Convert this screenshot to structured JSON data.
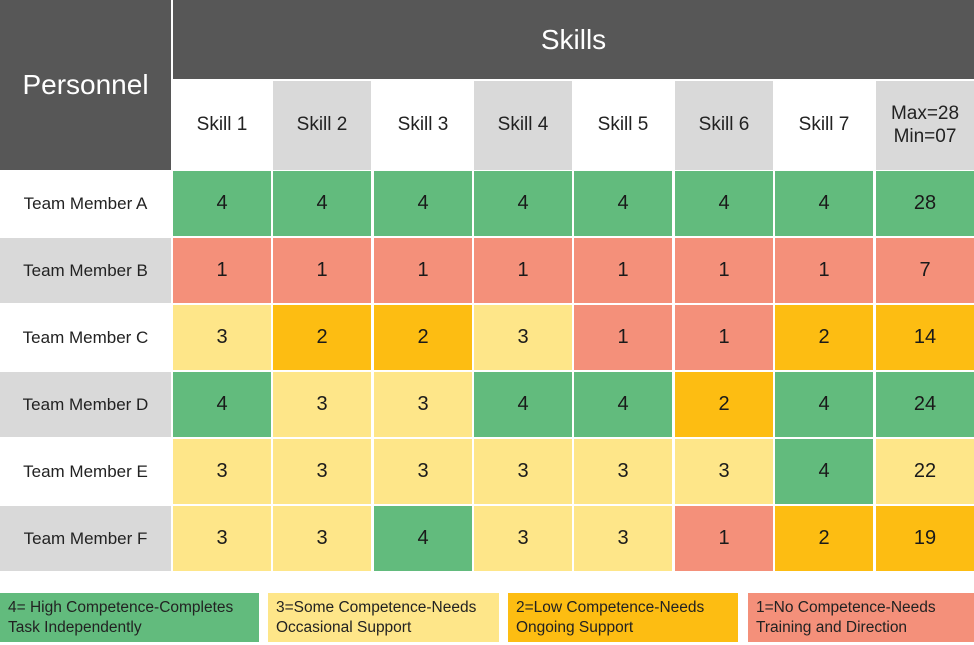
{
  "chart_data": {
    "type": "table",
    "title": "Skills",
    "row_header": "Personnel",
    "columns": [
      "Skill 1",
      "Skill 2",
      "Skill 3",
      "Skill 4",
      "Skill 5",
      "Skill 6",
      "Skill 7",
      "Max=28\nMin=07"
    ],
    "rows": [
      {
        "name": "Team Member A",
        "values": [
          4,
          4,
          4,
          4,
          4,
          4,
          4
        ],
        "total": 28
      },
      {
        "name": "Team Member B",
        "values": [
          1,
          1,
          1,
          1,
          1,
          1,
          1
        ],
        "total": 7
      },
      {
        "name": "Team Member C",
        "values": [
          3,
          2,
          2,
          3,
          1,
          1,
          2
        ],
        "total": 14
      },
      {
        "name": "Team Member D",
        "values": [
          4,
          3,
          3,
          4,
          4,
          2,
          4
        ],
        "total": 24
      },
      {
        "name": "Team Member E",
        "values": [
          3,
          3,
          3,
          3,
          3,
          3,
          4
        ],
        "total": 22
      },
      {
        "name": "Team Member F",
        "values": [
          3,
          3,
          4,
          3,
          3,
          1,
          2
        ],
        "total": 19
      }
    ],
    "total_colors": [
      "#62bb7d",
      "#f4907a",
      "#fdbd12",
      "#62bb7d",
      "#fee689",
      "#fdbd12"
    ],
    "level_colors": {
      "4": "#62bb7d",
      "3": "#fee689",
      "2": "#fdbd12",
      "1": "#f4907a"
    },
    "legend": [
      {
        "level": "4",
        "text": "4= High Competence-Completes Task Independently"
      },
      {
        "level": "3",
        "text": "3=Some Competence-Needs Occasional Support"
      },
      {
        "level": "2",
        "text": "2=Low Competence-Needs Ongoing Support"
      },
      {
        "level": "1",
        "text": "1=No Competence-Needs Training and Direction"
      }
    ]
  },
  "colors": {
    "header_dark": "#575757",
    "header_light": "#ffffff",
    "header_gray": "#d9d9d9"
  }
}
